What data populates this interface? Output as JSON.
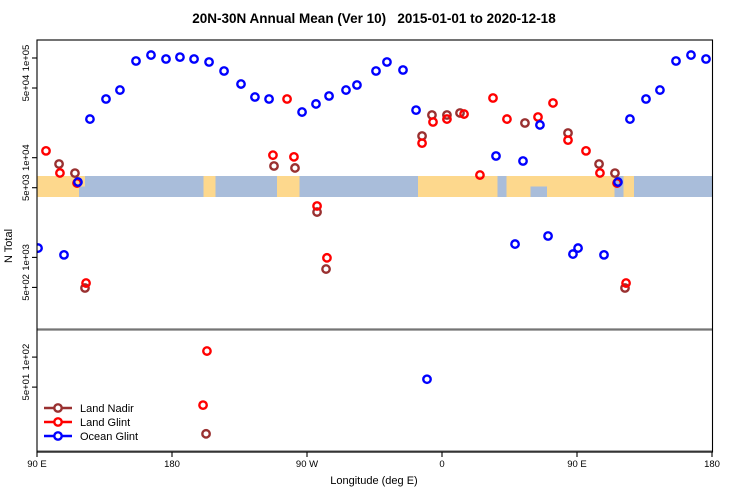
{
  "title": "20N-30N Annual Mean (Ver 10)   2015-01-01 to 2020-12-18",
  "axes": {
    "y_label": "N Total",
    "x_label": "Longitude (deg E)",
    "y_ticks": [
      {
        "label": "1e+05",
        "value": 100000
      },
      {
        "label": "5e+04",
        "value": 50000
      },
      {
        "label": "1e+04",
        "value": 10000
      },
      {
        "label": "5e+03",
        "value": 5000
      },
      {
        "label": "1e+03",
        "value": 1000
      },
      {
        "label": "5e+02",
        "value": 500
      },
      {
        "label": "1e+02",
        "value": 100
      },
      {
        "label": "5e+01",
        "value": 50
      }
    ],
    "x_ticks": [
      {
        "label": "90 E",
        "deg": 90
      },
      {
        "label": "180",
        "deg": 180
      },
      {
        "label": "90 W",
        "deg": 270
      },
      {
        "label": "0",
        "deg": 360
      },
      {
        "label": "90 E",
        "deg": 450
      },
      {
        "label": "180",
        "deg": 540
      }
    ]
  },
  "legend": [
    {
      "label": "Land Nadir",
      "color": "#993030"
    },
    {
      "label": "Land Glint",
      "color": "#ff0000"
    },
    {
      "label": "Ocean Glint",
      "color": "#0000ff"
    }
  ],
  "colors": {
    "land_nadir": "#993030",
    "land_glint": "#ff0000",
    "ocean_glint": "#0000ff",
    "map_ocean": "#a9bdda",
    "map_land": "#fdd88d",
    "separator": "#757575"
  },
  "map_band": {
    "land_segments_deg": [
      [
        90,
        122
      ],
      [
        201,
        209
      ],
      [
        250,
        265
      ],
      [
        344,
        475
      ],
      [
        481,
        488
      ]
    ],
    "ocean_notches_deg": [
      {
        "range": [
          397,
          403
        ],
        "part": "full"
      },
      {
        "range": [
          419,
          430
        ],
        "part": "bottom"
      },
      {
        "range": [
          118,
          124
        ],
        "part": "bottom"
      }
    ]
  },
  "chart_data": {
    "type": "scatter",
    "title": "20N-30N Annual Mean (Ver 10)  2015-01-01 to 2020-12-18",
    "xlabel": "Longitude (deg E)",
    "ylabel": "N Total",
    "x_axis": {
      "domain_deg_unwrapped": [
        90,
        540
      ],
      "note": "longitude axis runs 90E-180-90W-0-90E-180; points with lon 90E..180E are plotted twice (at lon and lon+360)"
    },
    "y_axis": {
      "scale": "log",
      "range": [
        30,
        200000
      ]
    },
    "legend_position": "bottom-left",
    "series": [
      {
        "name": "Land Nadir",
        "color": "#993030",
        "points": [
          [
            104.7,
            8650
          ],
          [
            115.3,
            7000
          ],
          [
            -112,
            8260
          ],
          [
            -98,
            7890
          ],
          [
            -83.3,
            2850
          ],
          [
            -77.3,
            764
          ],
          [
            -13.3,
            16500
          ],
          [
            -6.7,
            26800
          ],
          [
            3.3,
            26800
          ],
          [
            12,
            28100
          ],
          [
            55.3,
            22300
          ],
          [
            84,
            17700
          ],
          [
            122,
            493
          ],
          [
            -157.3,
            17
          ]
        ]
      },
      {
        "name": "Land Glint",
        "color": "#ff0000",
        "points": [
          [
            96,
            11700
          ],
          [
            105.3,
            7030
          ],
          [
            116.7,
            5570
          ],
          [
            -112.7,
            10600
          ],
          [
            -103.3,
            38800
          ],
          [
            -98.7,
            10200
          ],
          [
            -83.3,
            3280
          ],
          [
            -76.7,
            990
          ],
          [
            -13.3,
            14000
          ],
          [
            -6,
            22800
          ],
          [
            3.3,
            24400
          ],
          [
            14.7,
            27400
          ],
          [
            25.3,
            6700
          ],
          [
            34,
            39700
          ],
          [
            43.3,
            24400
          ],
          [
            64,
            25600
          ],
          [
            74,
            35400
          ],
          [
            84,
            15000
          ],
          [
            122.7,
            553
          ],
          [
            -156.7,
            115
          ],
          [
            -159.3,
            33
          ]
        ]
      },
      {
        "name": "Ocean Glint",
        "color": "#0000ff",
        "points": [
          [
            125.3,
            24400
          ],
          [
            136,
            38800
          ],
          [
            145.3,
            47700
          ],
          [
            156,
            93300
          ],
          [
            166,
            107000
          ],
          [
            176,
            97700
          ],
          [
            -174.7,
            102000
          ],
          [
            -165.3,
            97700
          ],
          [
            -155.3,
            91200
          ],
          [
            -145.3,
            74100
          ],
          [
            -134,
            54800
          ],
          [
            -124.7,
            40600
          ],
          [
            -115.3,
            38800
          ],
          [
            -93.3,
            28700
          ],
          [
            -84,
            34600
          ],
          [
            -75.3,
            41600
          ],
          [
            -64,
            47700
          ],
          [
            -56.7,
            53600
          ],
          [
            -44,
            74100
          ],
          [
            -36.7,
            91200
          ],
          [
            -26,
            75800
          ],
          [
            -17.3,
            30000
          ],
          [
            36,
            10400
          ],
          [
            54,
            9270
          ],
          [
            65.3,
            21300
          ],
          [
            90.7,
            1240
          ],
          [
            108,
            1060
          ],
          [
            117.3,
            5700
          ],
          [
            48.7,
            1360
          ],
          [
            70.7,
            1640
          ],
          [
            87.3,
            1080
          ],
          [
            -10,
            60
          ]
        ]
      }
    ]
  }
}
